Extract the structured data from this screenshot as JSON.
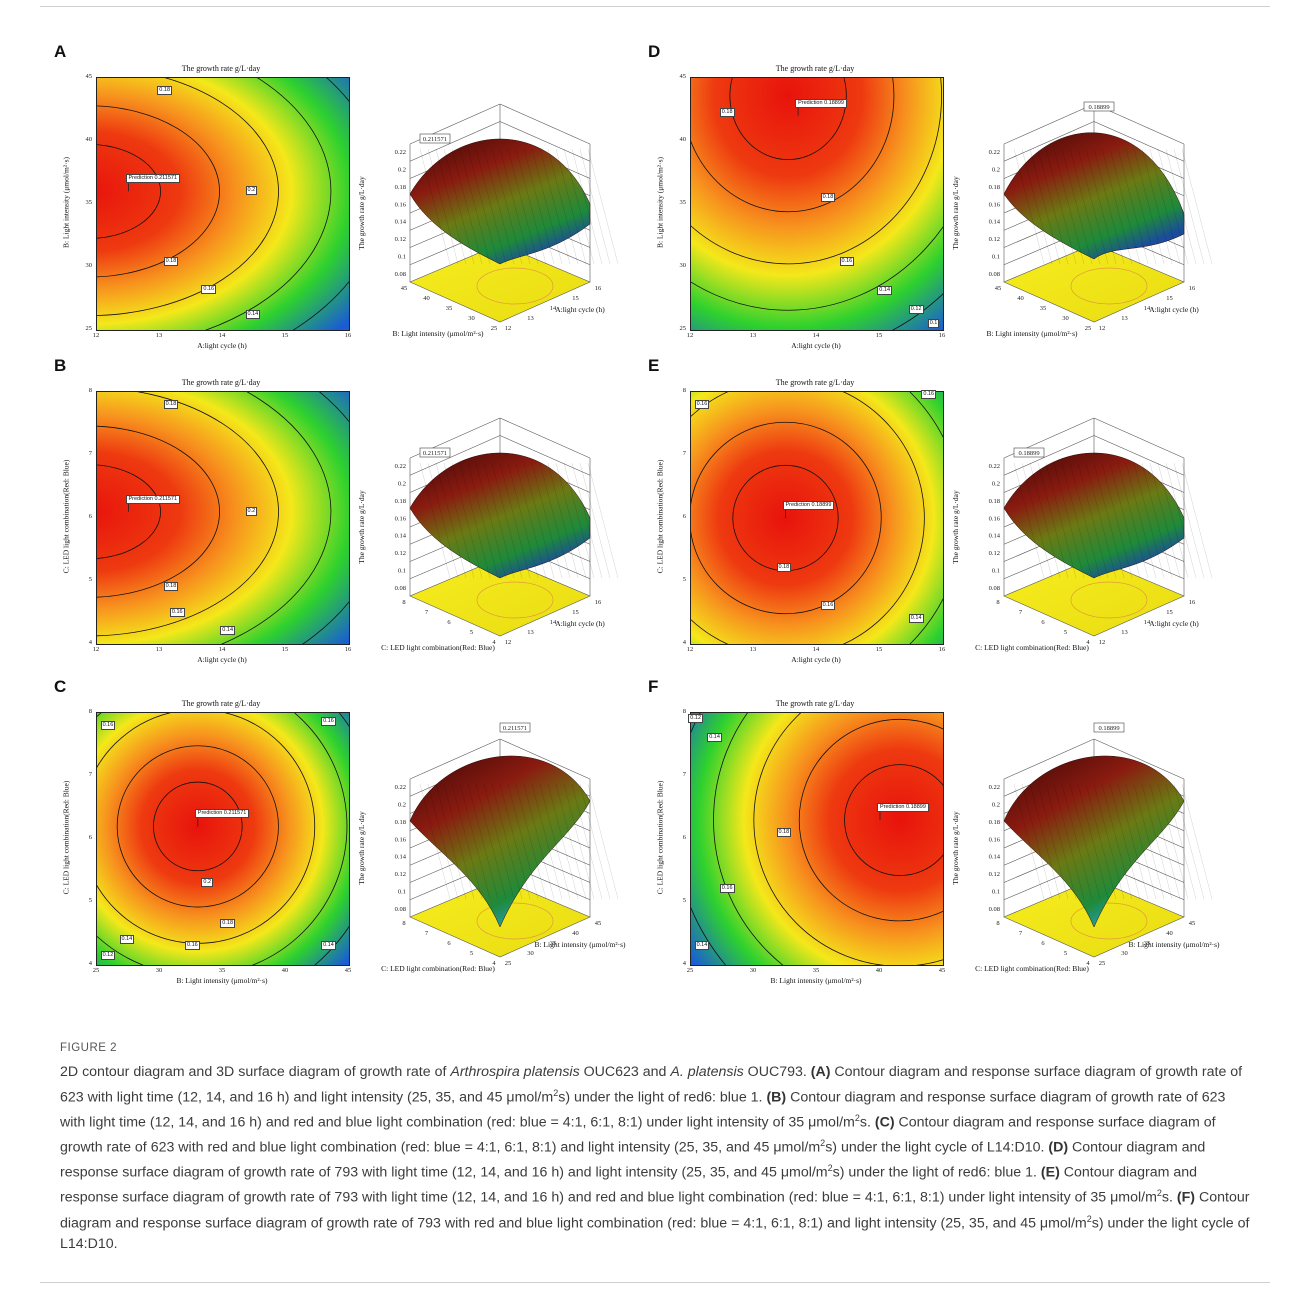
{
  "figure_label": "FIGURE 2",
  "caption_parts": [
    {
      "t": "2D contour diagram and 3D surface diagram of growth rate of "
    },
    {
      "t": "Arthrospira platensis",
      "i": true
    },
    {
      "t": " OUC623 and "
    },
    {
      "t": "A. platensis",
      "i": true
    },
    {
      "t": " OUC793. "
    },
    {
      "t": "(A)",
      "b": true
    },
    {
      "t": " Contour diagram and response surface diagram of growth rate of 623 with light time (12, 14, and 16 h) and light intensity (25, 35, and 45 μmol/m"
    },
    {
      "t": "2",
      "sup": true
    },
    {
      "t": "s) under the light of red6: blue 1. "
    },
    {
      "t": "(B)",
      "b": true
    },
    {
      "t": " Contour diagram and response surface diagram of growth rate of 623 with light time (12, 14, and 16 h) and red and blue light combination (red: blue = 4:1, 6:1, 8:1) under light intensity of 35 μmol/m"
    },
    {
      "t": "2",
      "sup": true
    },
    {
      "t": "s. "
    },
    {
      "t": "(C)",
      "b": true
    },
    {
      "t": " Contour diagram and response surface diagram of growth rate of 623 with red and blue light combination (red: blue = 4:1, 6:1, 8:1) and light intensity (25, 35, and 45 μmol/m"
    },
    {
      "t": "2",
      "sup": true
    },
    {
      "t": "s) under the light cycle of L14:D10. "
    },
    {
      "t": "(D)",
      "b": true
    },
    {
      "t": " Contour diagram and response surface diagram of growth rate of 793 with light time (12, 14, and 16 h) and light intensity (25, 35, and 45 μmol/m"
    },
    {
      "t": "2",
      "sup": true
    },
    {
      "t": "s) under the light of red6: blue 1. "
    },
    {
      "t": "(E)",
      "b": true
    },
    {
      "t": " Contour diagram and response surface diagram of growth rate of 793 with light time (12, 14, and 16 h) and red and blue light combination (red: blue = 4:1, 6:1, 8:1) under light intensity of 35 μmol/m"
    },
    {
      "t": "2",
      "sup": true
    },
    {
      "t": "s. "
    },
    {
      "t": "(F)",
      "b": true
    },
    {
      "t": " Contour diagram and response surface diagram of growth rate of 793 with red and blue light combination (red: blue = 4:1, 6:1, 8:1) and light intensity (25, 35, and 45 μmol/m"
    },
    {
      "t": "2",
      "sup": true
    },
    {
      "t": "s) under the light cycle of L14:D10."
    }
  ],
  "colors": {
    "red": "#e8130c",
    "orange": "#f7921e",
    "yellow": "#f4e81a",
    "green": "#2ed12e",
    "blue": "#1a5bd6"
  },
  "chart_data": [
    {
      "panel": "A",
      "type": "contour",
      "title": "The growth rate g/L·day",
      "xlabel": "A:light cycle (h)",
      "ylabel": "B: Light intensity (μmol/m²·s)",
      "xticks": [
        "12",
        "13",
        "14",
        "15",
        "16"
      ],
      "yticks": [
        "25",
        "30",
        "35",
        "40",
        "45"
      ],
      "xlim": [
        12,
        16
      ],
      "ylim": [
        25,
        45
      ],
      "optimum": {
        "x": 12.5,
        "y": 36,
        "prediction_label": "Prediction",
        "prediction_value": "0.211571"
      },
      "contour_labels": [
        {
          "text": "0.18",
          "x": 13.1,
          "y": 44
        },
        {
          "text": "0.2",
          "x": 14.5,
          "y": 36
        },
        {
          "text": "0.18",
          "x": 13.2,
          "y": 30.4
        },
        {
          "text": "0.16",
          "x": 13.8,
          "y": 28.2
        },
        {
          "text": "0.14",
          "x": 14.5,
          "y": 26.2
        }
      ],
      "surface": {
        "zlabel": "The growth rate g/L·day",
        "zticks": [
          "0.08",
          "0.1",
          "0.12",
          "0.14",
          "0.16",
          "0.18",
          "0.2",
          "0.22"
        ],
        "ylabel3d": "B: Light intensity (μmol/m²·s)",
        "yticks3d": [
          "45",
          "40",
          "35",
          "30",
          "25"
        ],
        "xlabel3d": "A:light cycle (h)",
        "xticks3d": [
          "12",
          "13",
          "14",
          "15",
          "16"
        ],
        "peak_label": "0.211571"
      }
    },
    {
      "panel": "B",
      "type": "contour",
      "title": "The growth rate g/L·day",
      "xlabel": "A:light cycle (h)",
      "ylabel": "C: LED light combination(Red: Blue)",
      "xticks": [
        "12",
        "13",
        "14",
        "15",
        "16"
      ],
      "yticks": [
        "4",
        "5",
        "6",
        "7",
        "8"
      ],
      "xlim": [
        12,
        16
      ],
      "ylim": [
        4,
        8
      ],
      "optimum": {
        "x": 12.5,
        "y": 6.1,
        "prediction_label": "Prediction",
        "prediction_value": "0.211571"
      },
      "contour_labels": [
        {
          "text": "0.18",
          "x": 13.2,
          "y": 7.8
        },
        {
          "text": "0.2",
          "x": 14.5,
          "y": 6.1
        },
        {
          "text": "0.18",
          "x": 13.2,
          "y": 4.9
        },
        {
          "text": "0.16",
          "x": 13.3,
          "y": 4.5
        },
        {
          "text": "0.14",
          "x": 14.1,
          "y": 4.2
        }
      ],
      "surface": {
        "zlabel": "The growth rate g/L·day",
        "zticks": [
          "0.08",
          "0.1",
          "0.12",
          "0.14",
          "0.16",
          "0.18",
          "0.2",
          "0.22"
        ],
        "ylabel3d": "C: LED light combination(Red: Blue)",
        "yticks3d": [
          "8",
          "7",
          "6",
          "5",
          "4"
        ],
        "xlabel3d": "A:light cycle (h)",
        "xticks3d": [
          "12",
          "13",
          "14",
          "15",
          "16"
        ],
        "peak_label": "0.211571"
      }
    },
    {
      "panel": "C",
      "type": "contour",
      "title": "The growth rate g/L·day",
      "xlabel": "B: Light intensity (μmol/m²·s)",
      "ylabel": "C: LED light combination(Red: Blue)",
      "xticks": [
        "25",
        "30",
        "35",
        "40",
        "45"
      ],
      "yticks": [
        "4",
        "5",
        "6",
        "7",
        "8"
      ],
      "xlim": [
        25,
        45
      ],
      "ylim": [
        4,
        8
      ],
      "optimum": {
        "x": 33,
        "y": 6.2,
        "prediction_label": "Prediction",
        "prediction_value": "0.211571"
      },
      "contour_labels": [
        {
          "text": "0.16",
          "x": 26,
          "y": 7.8
        },
        {
          "text": "0.16",
          "x": 43.5,
          "y": 7.85
        },
        {
          "text": "0.2",
          "x": 34,
          "y": 5.3
        },
        {
          "text": "0.18",
          "x": 35.5,
          "y": 4.65
        },
        {
          "text": "0.16",
          "x": 32.7,
          "y": 4.3
        },
        {
          "text": "0.14",
          "x": 27.5,
          "y": 4.4
        },
        {
          "text": "0.14",
          "x": 43.5,
          "y": 4.3
        },
        {
          "text": "0.12",
          "x": 26,
          "y": 4.15
        }
      ],
      "surface": {
        "zlabel": "The growth rate g/L·day",
        "zticks": [
          "0.08",
          "0.1",
          "0.12",
          "0.14",
          "0.16",
          "0.18",
          "0.2",
          "0.22"
        ],
        "ylabel3d": "C: LED light combination(Red: Blue)",
        "yticks3d": [
          "8",
          "7",
          "6",
          "5",
          "4"
        ],
        "xlabel3d": "B: Light intensity (μmol/m²·s)",
        "xticks3d": [
          "25",
          "30",
          "35",
          "40",
          "45"
        ],
        "peak_label": "0.211571"
      }
    },
    {
      "panel": "D",
      "type": "contour",
      "title": "The growth rate g/L·day",
      "xlabel": "A:light cycle (h)",
      "ylabel": "B: Light intensity (μmol/m²·s)",
      "xticks": [
        "12",
        "13",
        "14",
        "15",
        "16"
      ],
      "yticks": [
        "25",
        "30",
        "35",
        "40",
        "45"
      ],
      "xlim": [
        12,
        16
      ],
      "ylim": [
        25,
        45
      ],
      "optimum": {
        "x": 13.7,
        "y": 42,
        "prediction_label": "Prediction",
        "prediction_value": "0.18899"
      },
      "contour_labels": [
        {
          "text": "0.18",
          "x": 12.6,
          "y": 42.2
        },
        {
          "text": "0.18",
          "x": 14.2,
          "y": 35.5
        },
        {
          "text": "0.16",
          "x": 14.5,
          "y": 30.4
        },
        {
          "text": "0.14",
          "x": 15.1,
          "y": 28.1
        },
        {
          "text": "0.12",
          "x": 15.6,
          "y": 26.6
        },
        {
          "text": "0.1",
          "x": 15.9,
          "y": 25.5
        }
      ],
      "surface": {
        "zlabel": "The growth rate g/L·day",
        "zticks": [
          "0.08",
          "0.1",
          "0.12",
          "0.14",
          "0.16",
          "0.18",
          "0.2",
          "0.22"
        ],
        "ylabel3d": "B: Light intensity (μmol/m²·s)",
        "yticks3d": [
          "45",
          "40",
          "35",
          "30",
          "25"
        ],
        "xlabel3d": "A:light cycle (h)",
        "xticks3d": [
          "12",
          "13",
          "14",
          "15",
          "16"
        ],
        "peak_label": "0.18899"
      }
    },
    {
      "panel": "E",
      "type": "contour",
      "title": "The growth rate g/L·day",
      "xlabel": "A:light cycle (h)",
      "ylabel": "C: LED light combination(Red: Blue)",
      "xticks": [
        "12",
        "13",
        "14",
        "15",
        "16"
      ],
      "yticks": [
        "4",
        "5",
        "6",
        "7",
        "8"
      ],
      "xlim": [
        12,
        16
      ],
      "ylim": [
        4,
        8
      ],
      "optimum": {
        "x": 13.5,
        "y": 6.0,
        "prediction_label": "Prediction",
        "prediction_value": "0.18899"
      },
      "contour_labels": [
        {
          "text": "0.16",
          "x": 12.2,
          "y": 7.8
        },
        {
          "text": "0.16",
          "x": 15.8,
          "y": 7.95
        },
        {
          "text": "0.18",
          "x": 13.5,
          "y": 5.2
        },
        {
          "text": "0.16",
          "x": 14.2,
          "y": 4.6
        },
        {
          "text": "0.14",
          "x": 15.6,
          "y": 4.4
        }
      ],
      "surface": {
        "zlabel": "The growth rate g/L·day",
        "zticks": [
          "0.08",
          "0.1",
          "0.12",
          "0.14",
          "0.16",
          "0.18",
          "0.2",
          "0.22"
        ],
        "ylabel3d": "C: LED light combination(Red: Blue)",
        "yticks3d": [
          "8",
          "7",
          "6",
          "5",
          "4"
        ],
        "xlabel3d": "A:light cycle (h)",
        "xticks3d": [
          "12",
          "13",
          "14",
          "15",
          "16"
        ],
        "peak_label": "0.18899"
      }
    },
    {
      "panel": "F",
      "type": "contour",
      "title": "The growth rate g/L·day",
      "xlabel": "B: Light intensity (μmol/m²·s)",
      "ylabel": "C: LED light combination(Red: Blue)",
      "xticks": [
        "25",
        "30",
        "35",
        "40",
        "45"
      ],
      "yticks": [
        "4",
        "5",
        "6",
        "7",
        "8"
      ],
      "xlim": [
        25,
        45
      ],
      "ylim": [
        4,
        8
      ],
      "optimum": {
        "x": 40,
        "y": 6.3,
        "prediction_label": "Prediction",
        "prediction_value": "0.18899"
      },
      "contour_labels": [
        {
          "text": "0.12",
          "x": 25.5,
          "y": 7.9
        },
        {
          "text": "0.14",
          "x": 27,
          "y": 7.6
        },
        {
          "text": "0.18",
          "x": 32.5,
          "y": 6.1
        },
        {
          "text": "0.16",
          "x": 28,
          "y": 5.2
        },
        {
          "text": "0.14",
          "x": 26,
          "y": 4.3
        }
      ],
      "surface": {
        "zlabel": "The growth rate g/L·day",
        "zticks": [
          "0.08",
          "0.1",
          "0.12",
          "0.14",
          "0.16",
          "0.18",
          "0.2",
          "0.22"
        ],
        "ylabel3d": "C: LED light combination(Red: Blue)",
        "yticks3d": [
          "8",
          "7",
          "6",
          "5",
          "4"
        ],
        "xlabel3d": "B: Light intensity (μmol/m²·s)",
        "xticks3d": [
          "25",
          "30",
          "35",
          "40",
          "45"
        ],
        "peak_label": "0.18899"
      }
    }
  ]
}
